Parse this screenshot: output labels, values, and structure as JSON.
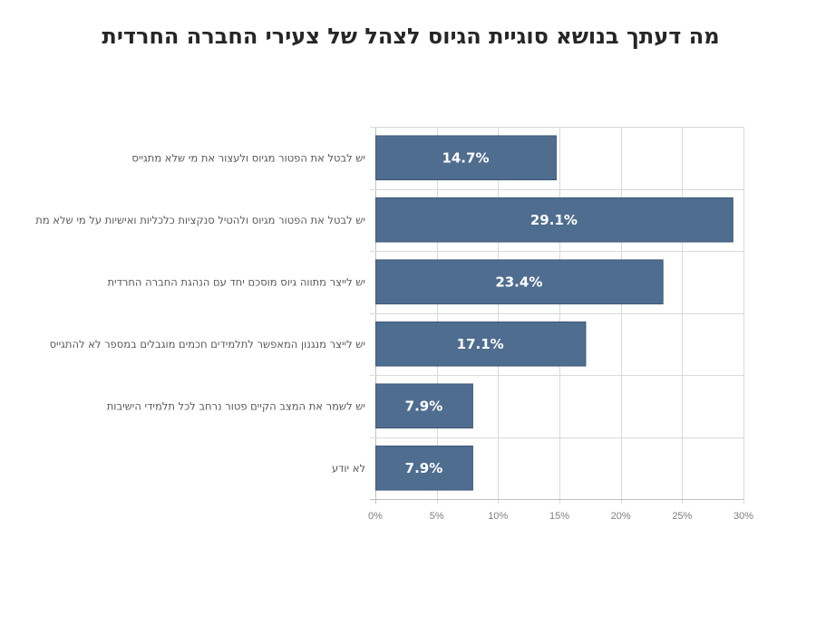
{
  "chart_data": {
    "type": "bar",
    "orientation": "horizontal",
    "title": "מה דעתך בנושא סוגיית הגיוס לצהל של צעירי החברה החרדית",
    "xlabel": "",
    "ylabel": "",
    "categories": [
      "יש לבטל את הפטור מגיוס ולעצור את מי שלא מתגייס",
      "יש לבטל את הפטור מגיוס ולהטיל סנקציות כלכליות ואישיות על מי שלא מת",
      "יש לייצר מתווה גיוס מוסכם יחד עם הנהגת החברה החרדית",
      "יש לייצר מנגנון המאפשר לתלמידים חכמים מוגבלים במספר לא להתגייס",
      "יש לשמר את המצב הקיים  פטור נרחב לכל תלמידי הישיבות",
      "לא יודע"
    ],
    "values": [
      14.7,
      29.1,
      23.4,
      17.1,
      7.9,
      7.9
    ],
    "data_labels": [
      "14.7%",
      "29.1%",
      "23.4%",
      "17.1%",
      "7.9%",
      "7.9%"
    ],
    "xlim": [
      0,
      30
    ],
    "x_ticks": [
      0,
      5,
      10,
      15,
      20,
      25,
      30
    ],
    "x_tick_labels": [
      "0%",
      "5%",
      "10%",
      "15%",
      "20%",
      "25%",
      "30%"
    ],
    "grid": true,
    "legend": "none",
    "colors": {
      "bar": "#4f6d8f",
      "bar_edge": "#3e5876",
      "grid": "#d9d9d9",
      "axis": "#bfbfbf"
    }
  }
}
